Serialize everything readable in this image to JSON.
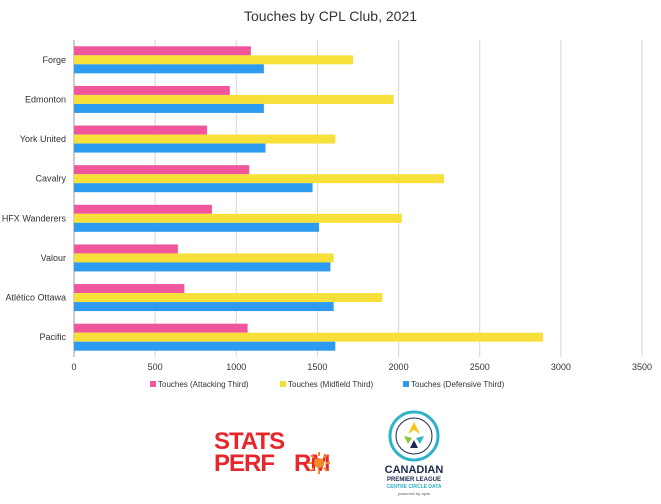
{
  "chart_data": {
    "type": "bar",
    "orientation": "horizontal",
    "title": "Touches by CPL Club, 2021",
    "categories": [
      "Forge",
      "Edmonton",
      "York United",
      "Cavalry",
      "HFX Wanderers",
      "Valour",
      "Atlético Ottawa",
      "Pacific"
    ],
    "series": [
      {
        "name": "Touches (Attacking Third)",
        "color": "#f0569c",
        "values": [
          1090,
          960,
          820,
          1080,
          850,
          640,
          680,
          1070
        ]
      },
      {
        "name": "Touches (Midfield Third)",
        "color": "#f8e03a",
        "values": [
          1720,
          1970,
          1610,
          2280,
          2020,
          1600,
          1900,
          2890
        ]
      },
      {
        "name": "Touches (Defensive Third)",
        "color": "#2d9cf0",
        "values": [
          1170,
          1170,
          1180,
          1470,
          1510,
          1580,
          1600,
          1610
        ]
      }
    ],
    "xlim": [
      0,
      3500
    ],
    "xticks": [
      "0",
      "500",
      "1000",
      "1500",
      "2000",
      "2500",
      "3000",
      "3500"
    ],
    "grid": true,
    "legend_position": "bottom"
  },
  "logos": {
    "stats_perform": {
      "line1": "STATS",
      "line2": "PERF",
      "line2_end": "RM"
    },
    "cpl": {
      "line1": "CANADIAN",
      "line2": "PREMIER LEAGUE",
      "line3": "CENTRE CIRCLE DATA",
      "line4": "powered by opta"
    }
  }
}
